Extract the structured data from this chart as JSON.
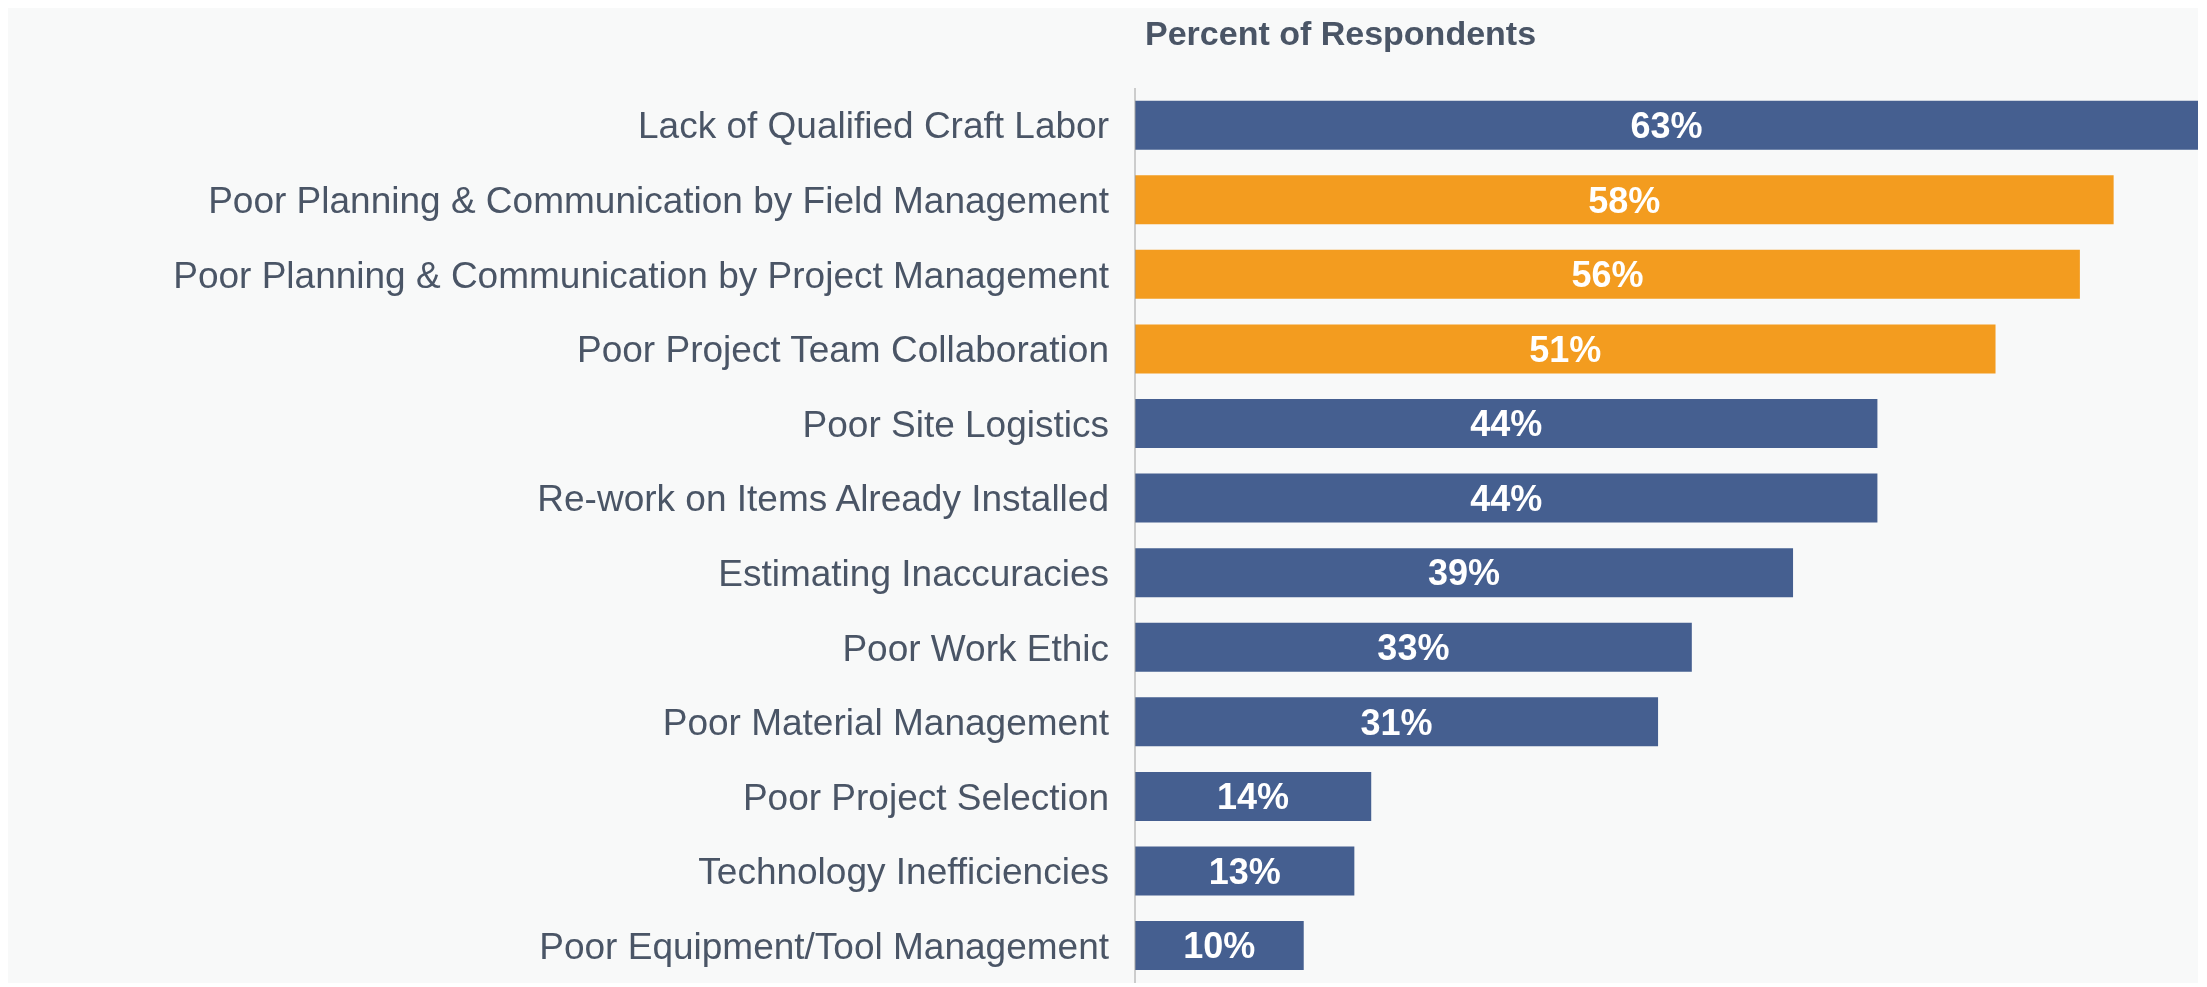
{
  "chart_data": {
    "type": "bar",
    "orientation": "horizontal",
    "title": "Percent of Respondents",
    "categories": [
      "Lack of Qualified Craft Labor",
      "Poor Planning & Communication by Field Management",
      "Poor Planning & Communication by Project Management",
      "Poor Project Team Collaboration",
      "Poor Site Logistics",
      "Re-work on Items Already Installed",
      "Estimating Inaccuracies",
      "Poor Work Ethic",
      "Poor Material Management",
      "Poor Project Selection",
      "Technology Inefficiencies",
      "Poor Equipment/Tool Management"
    ],
    "values": [
      63,
      58,
      56,
      51,
      44,
      44,
      39,
      33,
      31,
      14,
      13,
      10
    ],
    "value_labels": [
      "63%",
      "58%",
      "56%",
      "51%",
      "44%",
      "44%",
      "39%",
      "33%",
      "31%",
      "14%",
      "13%",
      "10%"
    ],
    "colors": [
      "#455f90",
      "#f39c1f",
      "#f39c1f",
      "#f39c1f",
      "#455f90",
      "#455f90",
      "#455f90",
      "#455f90",
      "#455f90",
      "#455f90",
      "#455f90",
      "#455f90"
    ]
  }
}
